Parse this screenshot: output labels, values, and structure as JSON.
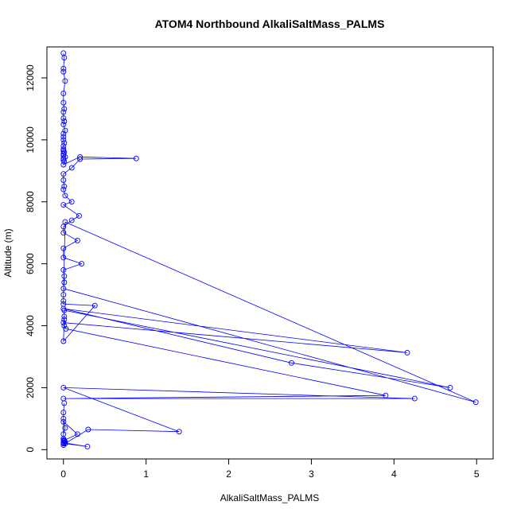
{
  "chart_data": {
    "type": "line",
    "title": "ATOM4 Northbound AlkaliSaltMass_PALMS",
    "xlabel": "AlkaliSaltMass_PALMS",
    "ylabel": "Altitude (m)",
    "xlim": [
      -0.2,
      5.2
    ],
    "ylim": [
      -300,
      13000
    ],
    "xticks": [
      0,
      1,
      2,
      3,
      4,
      5
    ],
    "yticks": [
      0,
      2000,
      4000,
      6000,
      8000,
      10000,
      12000
    ],
    "grid": false,
    "legend": "none",
    "color": "#0000ff",
    "marker": "open-circle",
    "series": [
      {
        "x": [
          0,
          0.01,
          0,
          0,
          0.02,
          0,
          0,
          0.01,
          0,
          0,
          0.01,
          0,
          0.02,
          0,
          0,
          0,
          0.01,
          0,
          0,
          0,
          0.01,
          0,
          0,
          0.02,
          0,
          0,
          0.01,
          0,
          0.2,
          0.88,
          0.2,
          0.1,
          0,
          0,
          0.01,
          0,
          0.02,
          0.1,
          0,
          0.19,
          0.1,
          0,
          0,
          0.17,
          0,
          0,
          0.22,
          0,
          0.01,
          0.01,
          0,
          4.99,
          0.02,
          0,
          0,
          0,
          0.38,
          0,
          0.01,
          0.01,
          0,
          4.16,
          0,
          2.76,
          4.68,
          0.01,
          0.01,
          0.03,
          3.9,
          0,
          4.25,
          0,
          1.4,
          0.3,
          0.02,
          0,
          0,
          0.17,
          0.01,
          0.01,
          0.02,
          0,
          0.29,
          0,
          0,
          0,
          0,
          0.02,
          0,
          0,
          0.01
        ],
        "y": [
          12800,
          12650,
          12300,
          12200,
          11900,
          11500,
          11200,
          11000,
          10900,
          10700,
          10600,
          10500,
          10300,
          10200,
          10100,
          10000,
          9900,
          9800,
          9700,
          9650,
          9600,
          9550,
          9500,
          9450,
          9400,
          9350,
          9300,
          9200,
          9450,
          9400,
          9380,
          9100,
          8900,
          8700,
          8500,
          8400,
          8200,
          8000,
          7900,
          7550,
          7400,
          7200,
          7000,
          6750,
          6500,
          6200,
          6000,
          5800,
          5600,
          5400,
          5200,
          1530,
          7350,
          5000,
          4800,
          4700,
          4650,
          3500,
          4300,
          4200,
          4100,
          3130,
          4550,
          2800,
          2000,
          4500,
          4000,
          3900,
          1750,
          1650,
          1650,
          2000,
          580,
          650,
          200,
          350,
          900,
          500,
          300,
          280,
          250,
          220,
          100,
          200,
          150,
          300,
          500,
          700,
          1000,
          1200,
          1500
        ]
      }
    ]
  }
}
